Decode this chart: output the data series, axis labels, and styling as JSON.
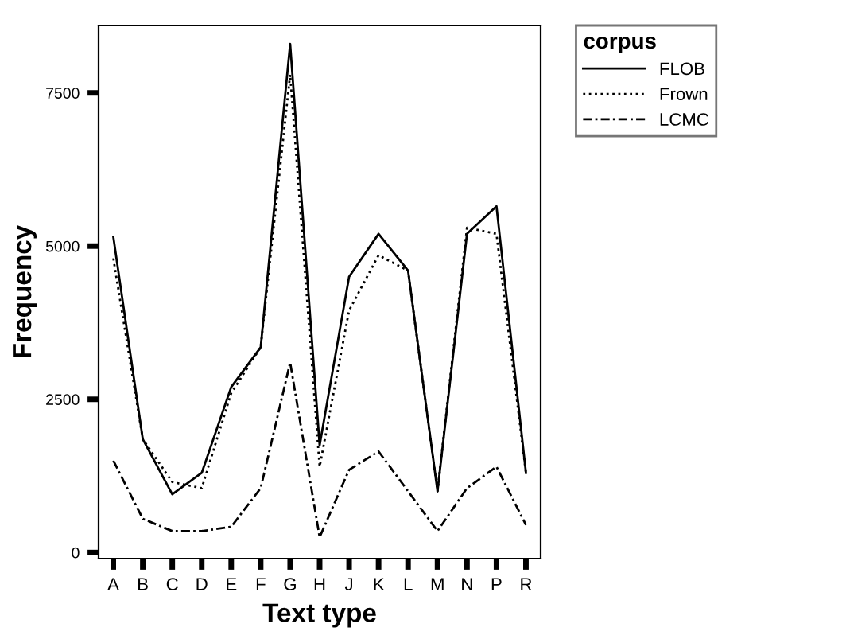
{
  "chart_data": {
    "type": "line",
    "xlabel": "Text type",
    "ylabel": "Frequency",
    "legend_title": "corpus",
    "legend": "top right",
    "categories": [
      "A",
      "B",
      "C",
      "D",
      "E",
      "F",
      "G",
      "H",
      "J",
      "K",
      "L",
      "M",
      "N",
      "P",
      "R"
    ],
    "ylim": [
      -100,
      8600
    ],
    "yticks": [
      0,
      2500,
      5000,
      7500
    ],
    "grid": false,
    "series": [
      {
        "name": "FLOB",
        "color": "#000000",
        "line_style": "solid",
        "values": [
          5150,
          1850,
          950,
          1300,
          2700,
          3350,
          8300,
          1750,
          4500,
          5200,
          4600,
          1000,
          5200,
          5650,
          1300
        ]
      },
      {
        "name": "Frown",
        "color": "#000000",
        "line_style": "dotted",
        "values": [
          4800,
          1850,
          1150,
          1050,
          2600,
          3350,
          7800,
          1400,
          3950,
          4850,
          4600,
          1000,
          5300,
          5200,
          1300
        ]
      },
      {
        "name": "LCMC",
        "color": "#000000",
        "line_style": "dashdot",
        "values": [
          1500,
          550,
          350,
          350,
          420,
          1050,
          3100,
          250,
          1350,
          1650,
          1000,
          350,
          1050,
          1400,
          450
        ]
      }
    ]
  }
}
